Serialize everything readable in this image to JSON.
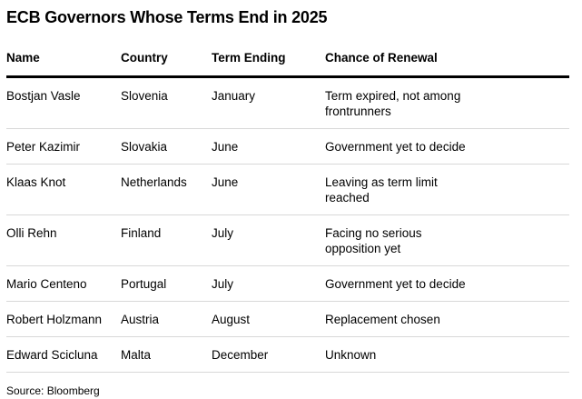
{
  "title": "ECB Governors Whose Terms End in 2025",
  "source_label": "Source: Bloomberg",
  "colors": {
    "background": "#ffffff",
    "text": "#000000",
    "header_rule": "#000000",
    "row_divider": "#d8d8d8"
  },
  "table": {
    "columns": [
      "Name",
      "Country",
      "Term Ending",
      "Chance of Renewal"
    ],
    "rows": [
      {
        "name": "Bostjan Vasle",
        "country": "Slovenia",
        "term_ending": "January",
        "renewal": "Term expired, not among\nfrontrunners"
      },
      {
        "name": "Peter Kazimir",
        "country": "Slovakia",
        "term_ending": "June",
        "renewal": "Government yet to decide"
      },
      {
        "name": "Klaas Knot",
        "country": "Netherlands",
        "term_ending": "June",
        "renewal": "Leaving as term limit\nreached"
      },
      {
        "name": "Olli Rehn",
        "country": "Finland",
        "term_ending": "July",
        "renewal": "Facing no serious\nopposition yet"
      },
      {
        "name": "Mario Centeno",
        "country": "Portugal",
        "term_ending": "July",
        "renewal": "Government yet to decide"
      },
      {
        "name": "Robert Holzmann",
        "country": "Austria",
        "term_ending": "August",
        "renewal": "Replacement chosen"
      },
      {
        "name": "Edward Scicluna",
        "country": "Malta",
        "term_ending": "December",
        "renewal": "Unknown"
      }
    ]
  },
  "chart_data": {
    "type": "table",
    "title": "ECB Governors Whose Terms End in 2025",
    "columns": [
      "Name",
      "Country",
      "Term Ending",
      "Chance of Renewal"
    ],
    "rows": [
      [
        "Bostjan Vasle",
        "Slovenia",
        "January",
        "Term expired, not among frontrunners"
      ],
      [
        "Peter Kazimir",
        "Slovakia",
        "June",
        "Government yet to decide"
      ],
      [
        "Klaas Knot",
        "Netherlands",
        "June",
        "Leaving as term limit reached"
      ],
      [
        "Olli Rehn",
        "Finland",
        "July",
        "Facing no serious opposition yet"
      ],
      [
        "Mario Centeno",
        "Portugal",
        "July",
        "Government yet to decide"
      ],
      [
        "Robert Holzmann",
        "Austria",
        "August",
        "Replacement chosen"
      ],
      [
        "Edward Scicluna",
        "Malta",
        "December",
        "Unknown"
      ]
    ],
    "source": "Source: Bloomberg",
    "layout": {
      "header_rule": "thick-black",
      "row_dividers": "thin-gray",
      "alignment": "left"
    }
  }
}
